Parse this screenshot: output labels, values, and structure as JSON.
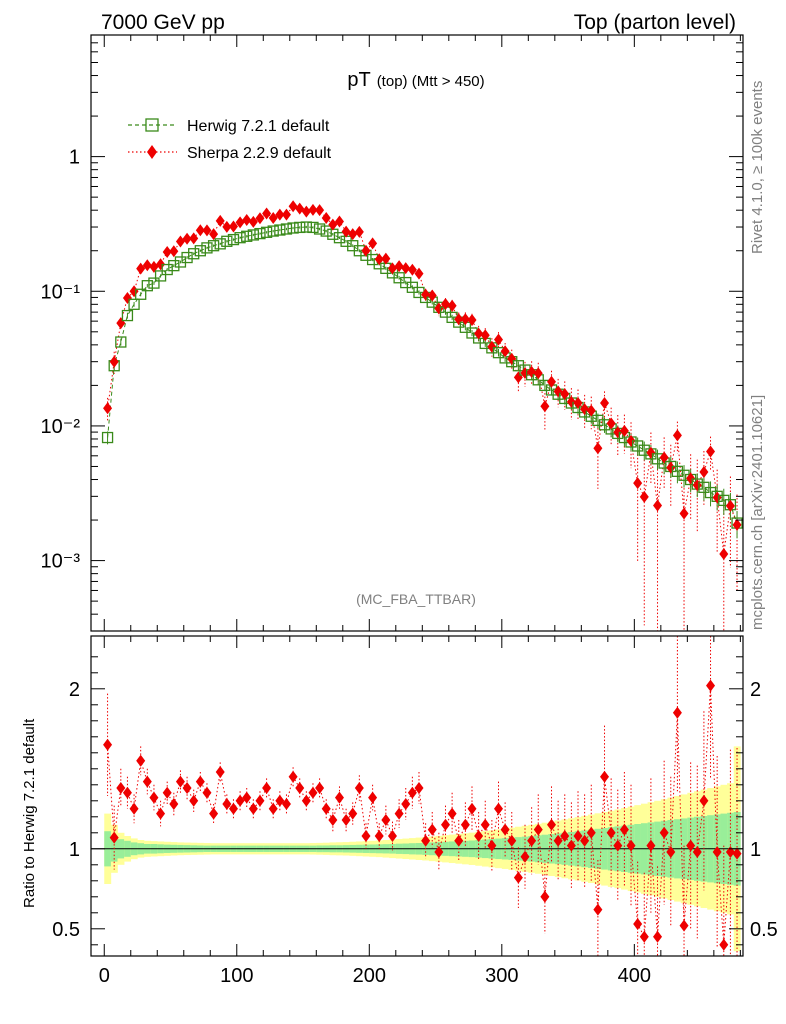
{
  "header": {
    "left": "7000 GeV pp",
    "right": "Top (parton level)"
  },
  "side_text": {
    "rivet": "Rivet 4.1.0, ≥ 100k events",
    "mcplots": "mcplots.cern.ch [arXiv:2401.10621]"
  },
  "chart_data": {
    "type": "scatter",
    "title": "pT",
    "title_sub": "(top) (Mtt > 450)",
    "analysis": "(MC_FBA_TTBAR)",
    "xlabel": "",
    "ylabel": "",
    "xlim": [
      -10,
      482
    ],
    "ylim": [
      0.0003,
      8
    ],
    "yscale": "log",
    "x_ticks": [
      "0",
      "100",
      "200",
      "300",
      "400"
    ],
    "y_ticks": [
      "10⁻³",
      "10⁻²",
      "10⁻¹",
      "1"
    ],
    "legend_position": "top-left",
    "x": [
      2.5,
      7.5,
      12.5,
      17.5,
      22.5,
      27.5,
      32.5,
      37.5,
      42.5,
      47.5,
      52.5,
      57.5,
      62.5,
      67.5,
      72.5,
      77.5,
      82.5,
      87.5,
      92.5,
      97.5,
      102.5,
      107.5,
      112.5,
      117.5,
      122.5,
      127.5,
      132.5,
      137.5,
      142.5,
      147.5,
      152.5,
      157.5,
      162.5,
      167.5,
      172.5,
      177.5,
      182.5,
      187.5,
      192.5,
      197.5,
      202.5,
      207.5,
      212.5,
      217.5,
      222.5,
      227.5,
      232.5,
      237.5,
      242.5,
      247.5,
      252.5,
      257.5,
      262.5,
      267.5,
      272.5,
      277.5,
      282.5,
      287.5,
      292.5,
      297.5,
      302.5,
      307.5,
      312.5,
      317.5,
      322.5,
      327.5,
      332.5,
      337.5,
      342.5,
      347.5,
      352.5,
      357.5,
      362.5,
      367.5,
      372.5,
      377.5,
      382.5,
      387.5,
      392.5,
      397.5,
      402.5,
      407.5,
      412.5,
      417.5,
      422.5,
      427.5,
      432.5,
      437.5,
      442.5,
      447.5,
      452.5,
      457.5,
      462.5,
      467.5,
      472.5,
      477.5
    ],
    "series": [
      {
        "name": "Herwig 7.2.1 default",
        "color": "#3a8a1a",
        "values": [
          0.0082,
          0.028,
          0.042,
          0.066,
          0.08,
          0.095,
          0.11,
          0.115,
          0.13,
          0.145,
          0.155,
          0.165,
          0.178,
          0.19,
          0.2,
          0.21,
          0.218,
          0.225,
          0.235,
          0.242,
          0.25,
          0.256,
          0.262,
          0.268,
          0.274,
          0.28,
          0.285,
          0.29,
          0.295,
          0.298,
          0.3,
          0.298,
          0.29,
          0.28,
          0.265,
          0.25,
          0.235,
          0.218,
          0.2,
          0.185,
          0.172,
          0.16,
          0.148,
          0.137,
          0.126,
          0.116,
          0.107,
          0.098,
          0.09,
          0.083,
          0.076,
          0.07,
          0.064,
          0.059,
          0.054,
          0.049,
          0.045,
          0.041,
          0.038,
          0.035,
          0.032,
          0.03,
          0.028,
          0.026,
          0.024,
          0.022,
          0.02,
          0.0185,
          0.0172,
          0.016,
          0.0148,
          0.0137,
          0.0127,
          0.0118,
          0.011,
          0.0102,
          0.0095,
          0.0088,
          0.0082,
          0.0076,
          0.0071,
          0.0066,
          0.0062,
          0.0057,
          0.0053,
          0.005,
          0.0046,
          0.0043,
          0.004,
          0.0037,
          0.0035,
          0.0032,
          0.003,
          0.0028,
          0.0026,
          0.0019
        ],
        "ratio_err_in": [
          0.11,
          0.08,
          0.06,
          0.05,
          0.04,
          0.035,
          0.03,
          0.03,
          0.028,
          0.026,
          0.025,
          0.024,
          0.023,
          0.022,
          0.021,
          0.02,
          0.02,
          0.02,
          0.02,
          0.02,
          0.02,
          0.02,
          0.02,
          0.02,
          0.02,
          0.02,
          0.02,
          0.02,
          0.02,
          0.02,
          0.02,
          0.02,
          0.021,
          0.021,
          0.022,
          0.022,
          0.023,
          0.024,
          0.025,
          0.026,
          0.027,
          0.028,
          0.029,
          0.03,
          0.032,
          0.033,
          0.035,
          0.036,
          0.038,
          0.04,
          0.042,
          0.044,
          0.046,
          0.048,
          0.05,
          0.052,
          0.055,
          0.058,
          0.061,
          0.064,
          0.067,
          0.07,
          0.073,
          0.076,
          0.08,
          0.084,
          0.088,
          0.092,
          0.096,
          0.1,
          0.105,
          0.11,
          0.115,
          0.12,
          0.125,
          0.13,
          0.135,
          0.14,
          0.145,
          0.15,
          0.155,
          0.16,
          0.165,
          0.17,
          0.175,
          0.18,
          0.185,
          0.19,
          0.195,
          0.2,
          0.205,
          0.21,
          0.215,
          0.22,
          0.225,
          0.23
        ],
        "ratio_err_out": [
          0.22,
          0.15,
          0.1,
          0.08,
          0.065,
          0.055,
          0.05,
          0.048,
          0.046,
          0.044,
          0.042,
          0.04,
          0.039,
          0.038,
          0.037,
          0.036,
          0.035,
          0.035,
          0.035,
          0.035,
          0.035,
          0.035,
          0.035,
          0.035,
          0.035,
          0.035,
          0.035,
          0.035,
          0.035,
          0.035,
          0.035,
          0.036,
          0.037,
          0.038,
          0.04,
          0.041,
          0.042,
          0.044,
          0.046,
          0.048,
          0.05,
          0.052,
          0.055,
          0.058,
          0.061,
          0.064,
          0.067,
          0.07,
          0.073,
          0.077,
          0.081,
          0.085,
          0.089,
          0.093,
          0.097,
          0.101,
          0.106,
          0.111,
          0.116,
          0.121,
          0.126,
          0.132,
          0.138,
          0.144,
          0.15,
          0.156,
          0.163,
          0.17,
          0.177,
          0.184,
          0.191,
          0.198,
          0.206,
          0.214,
          0.222,
          0.23,
          0.238,
          0.246,
          0.255,
          0.264,
          0.273,
          0.282,
          0.291,
          0.3,
          0.31,
          0.32,
          0.33,
          0.34,
          0.35,
          0.36,
          0.37,
          0.38,
          0.39,
          0.4,
          0.41,
          0.64
        ]
      },
      {
        "name": "Sherpa 2.2.9 default",
        "color": "#ee0000",
        "ratio": [
          1.65,
          1.07,
          1.38,
          1.35,
          1.25,
          1.55,
          1.42,
          1.32,
          1.22,
          1.35,
          1.28,
          1.42,
          1.38,
          1.3,
          1.42,
          1.35,
          1.22,
          1.48,
          1.28,
          1.25,
          1.3,
          1.32,
          1.25,
          1.3,
          1.38,
          1.25,
          1.3,
          1.28,
          1.45,
          1.38,
          1.3,
          1.35,
          1.38,
          1.25,
          1.18,
          1.32,
          1.18,
          1.22,
          1.38,
          1.08,
          1.32,
          1.08,
          1.18,
          1.08,
          1.22,
          1.28,
          1.35,
          1.38,
          1.05,
          1.12,
          0.98,
          1.15,
          1.22,
          1.05,
          1.15,
          1.25,
          1.08,
          1.15,
          1.02,
          1.25,
          1.12,
          1.05,
          0.82,
          0.95,
          1.05,
          1.12,
          0.7,
          1.15,
          1.05,
          1.08,
          1.02,
          1.08,
          1.05,
          1.1,
          0.62,
          1.45,
          1.1,
          1.02,
          1.12,
          1.02,
          0.53,
          0.45,
          1.02,
          0.45,
          1.1,
          0.98,
          1.85,
          0.52,
          1.02,
          0.98,
          1.3,
          2.02,
          0.98,
          0.4,
          0.98,
          0.97
        ],
        "ratio_err": [
          0.32,
          0.2,
          0.12,
          0.1,
          0.09,
          0.09,
          0.08,
          0.08,
          0.08,
          0.07,
          0.07,
          0.07,
          0.07,
          0.07,
          0.06,
          0.06,
          0.06,
          0.06,
          0.06,
          0.06,
          0.06,
          0.06,
          0.06,
          0.06,
          0.06,
          0.06,
          0.06,
          0.06,
          0.06,
          0.06,
          0.06,
          0.06,
          0.06,
          0.06,
          0.07,
          0.07,
          0.07,
          0.07,
          0.08,
          0.08,
          0.08,
          0.08,
          0.09,
          0.09,
          0.09,
          0.1,
          0.1,
          0.1,
          0.11,
          0.11,
          0.12,
          0.12,
          0.13,
          0.13,
          0.14,
          0.14,
          0.15,
          0.15,
          0.16,
          0.17,
          0.17,
          0.18,
          0.19,
          0.2,
          0.21,
          0.22,
          0.23,
          0.24,
          0.25,
          0.26,
          0.27,
          0.28,
          0.29,
          0.3,
          0.31,
          0.32,
          0.34,
          0.35,
          0.36,
          0.38,
          0.39,
          0.4,
          0.42,
          0.44,
          0.45,
          0.47,
          0.49,
          0.5,
          0.52,
          0.54,
          0.56,
          0.58,
          0.6,
          0.62,
          0.64,
          0.66
        ]
      }
    ],
    "ratio_panel": {
      "ylabel": "Ratio to Herwig 7.2.1 default",
      "ylim": [
        0.33,
        2.33
      ],
      "y_ticks": [
        "0.5",
        "1",
        "2"
      ]
    }
  }
}
